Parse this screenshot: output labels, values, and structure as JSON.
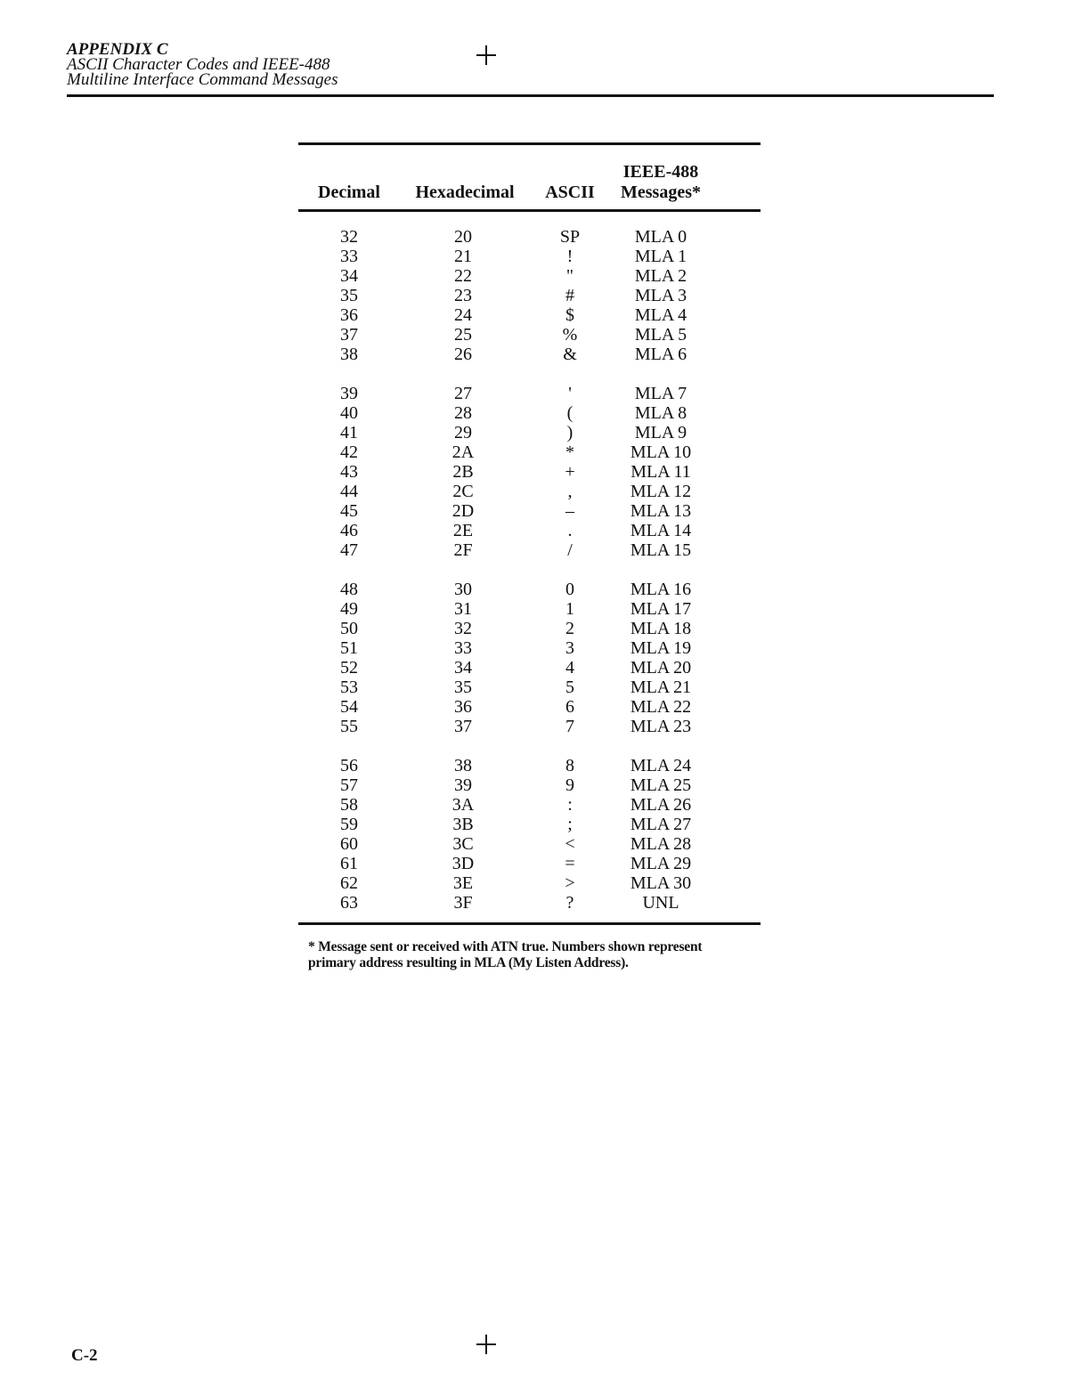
{
  "header": {
    "appendix": "APPENDIX C",
    "line1": "ASCII Character Codes and IEEE-488",
    "line2": "Multiline Interface Command Messages"
  },
  "table": {
    "columns": [
      "Decimal",
      "Hexadecimal",
      "ASCII",
      "IEEE-488",
      "Messages*"
    ],
    "groups": [
      [
        [
          "32",
          "20",
          "SP",
          "MLA 0"
        ],
        [
          "33",
          "21",
          "!",
          "MLA 1"
        ],
        [
          "34",
          "22",
          "\"",
          "MLA 2"
        ],
        [
          "35",
          "23",
          "#",
          "MLA 3"
        ],
        [
          "36",
          "24",
          "$",
          "MLA 4"
        ],
        [
          "37",
          "25",
          "%",
          "MLA 5"
        ],
        [
          "38",
          "26",
          "&",
          "MLA 6"
        ]
      ],
      [
        [
          "39",
          "27",
          "'",
          "MLA 7"
        ],
        [
          "40",
          "28",
          "(",
          "MLA 8"
        ],
        [
          "41",
          "29",
          ")",
          "MLA 9"
        ],
        [
          "42",
          "2A",
          "*",
          "MLA 10"
        ],
        [
          "43",
          "2B",
          "+",
          "MLA 11"
        ],
        [
          "44",
          "2C",
          ",",
          "MLA 12"
        ],
        [
          "45",
          "2D",
          "–",
          "MLA 13"
        ],
        [
          "46",
          "2E",
          ".",
          "MLA 14"
        ],
        [
          "47",
          "2F",
          "/",
          "MLA 15"
        ]
      ],
      [
        [
          "48",
          "30",
          "0",
          "MLA 16"
        ],
        [
          "49",
          "31",
          "1",
          "MLA 17"
        ],
        [
          "50",
          "32",
          "2",
          "MLA 18"
        ],
        [
          "51",
          "33",
          "3",
          "MLA 19"
        ],
        [
          "52",
          "34",
          "4",
          "MLA 20"
        ],
        [
          "53",
          "35",
          "5",
          "MLA 21"
        ],
        [
          "54",
          "36",
          "6",
          "MLA 22"
        ],
        [
          "55",
          "37",
          "7",
          "MLA 23"
        ]
      ],
      [
        [
          "56",
          "38",
          "8",
          "MLA 24"
        ],
        [
          "57",
          "39",
          "9",
          "MLA 25"
        ],
        [
          "58",
          "3A",
          ":",
          "MLA 26"
        ],
        [
          "59",
          "3B",
          ";",
          "MLA 27"
        ],
        [
          "60",
          "3C",
          "<",
          "MLA 28"
        ],
        [
          "61",
          "3D",
          "=",
          "MLA 29"
        ],
        [
          "62",
          "3E",
          ">",
          "MLA 30"
        ],
        [
          "63",
          "3F",
          "?",
          "UNL"
        ]
      ]
    ]
  },
  "footnote": {
    "line1": "* Message sent or received with ATN true. Numbers shown represent",
    "line2": "primary address resulting in MLA (My Listen Address)."
  },
  "page_number": "C-2"
}
